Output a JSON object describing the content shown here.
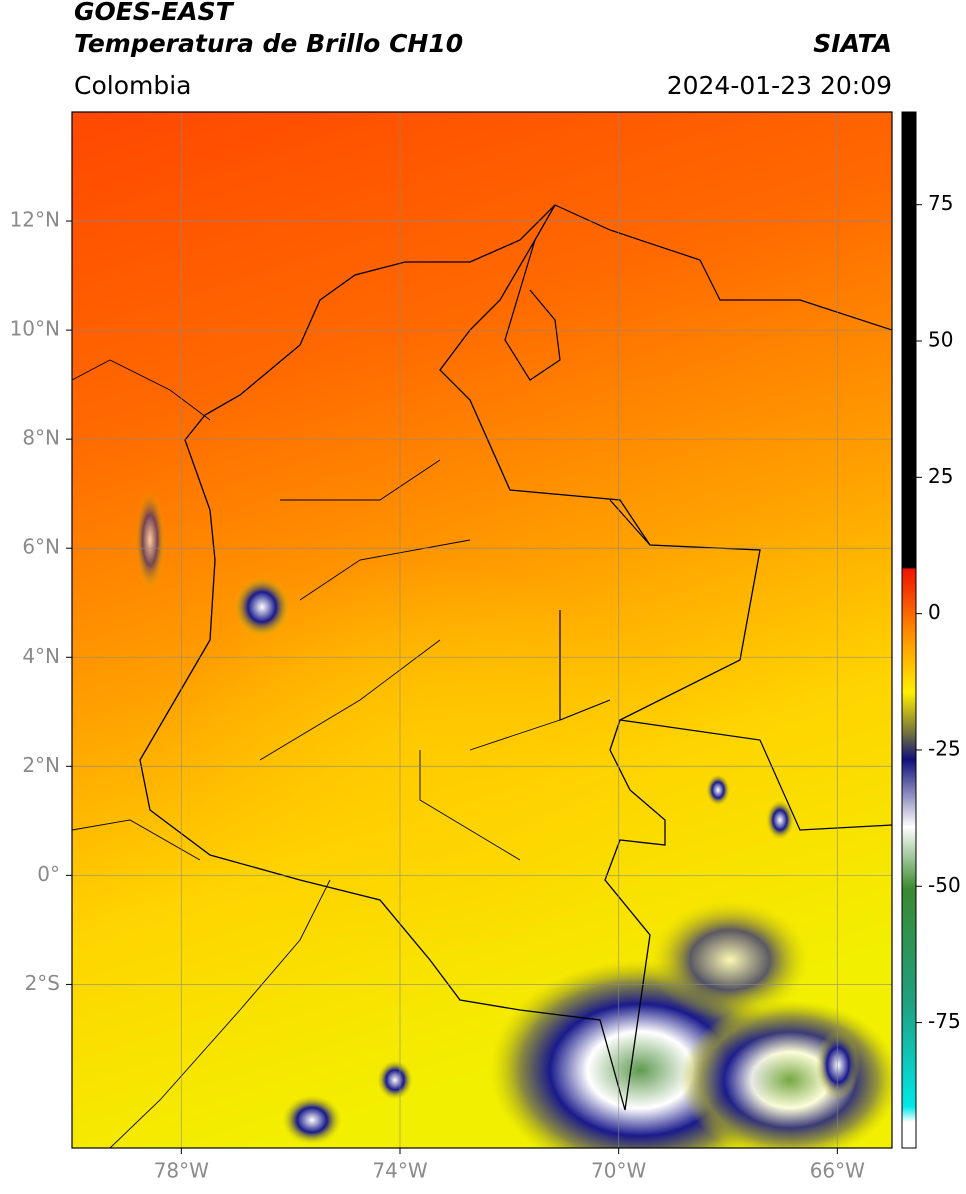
{
  "header": {
    "title": "GOES-EAST",
    "subtitle": "Temperatura de Brillo CH10",
    "region": "Colombia",
    "source": "SIATA",
    "datetime": "2024-01-23 20:09"
  },
  "map": {
    "xlim": [
      -80,
      -65
    ],
    "ylim": [
      -5,
      14
    ],
    "xticks": [
      {
        "value": -78,
        "label": "78°W"
      },
      {
        "value": -74,
        "label": "74°W"
      },
      {
        "value": -70,
        "label": "70°W"
      },
      {
        "value": -66,
        "label": "66°W"
      }
    ],
    "yticks": [
      {
        "value": 12,
        "label": "12°N"
      },
      {
        "value": 10,
        "label": "10°N"
      },
      {
        "value": 8,
        "label": "8°N"
      },
      {
        "value": 6,
        "label": "6°N"
      },
      {
        "value": 4,
        "label": "4°N"
      },
      {
        "value": 2,
        "label": "2°N"
      },
      {
        "value": 0,
        "label": "0°"
      },
      {
        "value": -2,
        "label": "2°S"
      }
    ]
  },
  "colorbar": {
    "lim": [
      -98,
      92
    ],
    "ticks": [
      75,
      50,
      25,
      0,
      -25,
      -50,
      -75
    ]
  }
}
